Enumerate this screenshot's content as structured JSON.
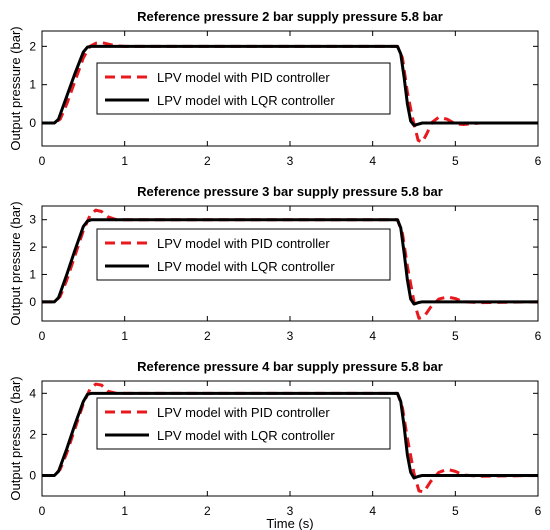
{
  "figure": {
    "ylabel": "Output pressure (bar)",
    "xlabel": "Time (s)"
  },
  "colors": {
    "pid": "#e8191e",
    "lqr": "#000000",
    "axes": "#000000",
    "background": "#ffffff"
  },
  "chart_data": [
    {
      "type": "line",
      "title": "Reference pressure 2 bar supply pressure 5.8 bar",
      "xlabel": "",
      "ylabel": "Output pressure (bar)",
      "xlim": [
        0,
        6
      ],
      "ylim": [
        -0.6,
        2.4
      ],
      "xticks": [
        "0",
        "1",
        "2",
        "3",
        "4",
        "5",
        "6"
      ],
      "yticks": [
        "0",
        "1",
        "2"
      ],
      "grid": false,
      "legend": "center",
      "series": [
        {
          "name": "LPV model with PID controller",
          "style": "dashed",
          "x": [
            0,
            0.15,
            0.22,
            0.3,
            0.4,
            0.5,
            0.58,
            0.65,
            0.72,
            0.8,
            0.9,
            1.0,
            1.2,
            4.3,
            4.36,
            4.42,
            4.48,
            4.55,
            4.6,
            4.65,
            4.72,
            4.8,
            4.9,
            5.0,
            5.1,
            5.3,
            6.0
          ],
          "y": [
            0,
            0,
            0.1,
            0.5,
            1.1,
            1.7,
            2.0,
            2.08,
            2.1,
            2.06,
            2.01,
            2.0,
            2.0,
            2.0,
            1.7,
            0.8,
            0.15,
            -0.45,
            -0.5,
            -0.3,
            0.02,
            0.15,
            0.1,
            -0.02,
            -0.04,
            0.0,
            0.0
          ]
        },
        {
          "name": "LPV model with LQR controller",
          "style": "solid",
          "x": [
            0,
            0.15,
            0.2,
            0.3,
            0.4,
            0.5,
            0.55,
            0.6,
            0.7,
            1.0,
            4.3,
            4.34,
            4.38,
            4.42,
            4.46,
            4.5,
            4.55,
            4.6,
            4.7,
            6.0
          ],
          "y": [
            0,
            0,
            0.1,
            0.7,
            1.3,
            1.85,
            1.98,
            2.0,
            2.0,
            2.0,
            2.0,
            1.8,
            1.2,
            0.5,
            0.05,
            -0.06,
            -0.03,
            0.0,
            0.0,
            0.0
          ]
        }
      ]
    },
    {
      "type": "line",
      "title": "Reference pressure 3 bar supply pressure 5.8 bar",
      "xlabel": "",
      "ylabel": "Output pressure (bar)",
      "xlim": [
        0,
        6
      ],
      "ylim": [
        -0.7,
        3.5
      ],
      "xticks": [
        "0",
        "1",
        "2",
        "3",
        "4",
        "5",
        "6"
      ],
      "yticks": [
        "0",
        "1",
        "2",
        "3"
      ],
      "grid": false,
      "legend": "center",
      "series": [
        {
          "name": "LPV model with PID controller",
          "style": "dashed",
          "x": [
            0,
            0.15,
            0.22,
            0.3,
            0.4,
            0.5,
            0.58,
            0.65,
            0.72,
            0.8,
            0.9,
            1.0,
            1.2,
            4.3,
            4.36,
            4.42,
            4.5,
            4.56,
            4.62,
            4.7,
            4.8,
            4.9,
            5.0,
            5.1,
            5.3,
            6.0
          ],
          "y": [
            0,
            0,
            0.2,
            0.8,
            1.7,
            2.6,
            3.15,
            3.35,
            3.3,
            3.1,
            3.0,
            3.0,
            3.0,
            3.0,
            2.5,
            1.3,
            0.0,
            -0.6,
            -0.55,
            -0.2,
            0.1,
            0.18,
            0.12,
            0.0,
            -0.03,
            0.0
          ]
        },
        {
          "name": "LPV model with LQR controller",
          "style": "solid",
          "x": [
            0,
            0.15,
            0.2,
            0.3,
            0.4,
            0.5,
            0.55,
            0.6,
            0.7,
            1.0,
            4.3,
            4.34,
            4.38,
            4.42,
            4.46,
            4.5,
            4.55,
            4.6,
            4.7,
            6.0
          ],
          "y": [
            0,
            0,
            0.15,
            1.0,
            1.9,
            2.75,
            2.95,
            3.0,
            3.0,
            3.0,
            3.0,
            2.7,
            1.8,
            0.8,
            0.1,
            -0.08,
            -0.03,
            0.0,
            0.0,
            0.0
          ]
        }
      ]
    },
    {
      "type": "line",
      "title": "Reference pressure 4 bar supply pressure 5.8 bar",
      "xlabel": "Time (s)",
      "ylabel": "Output pressure (bar)",
      "xlim": [
        0,
        6
      ],
      "ylim": [
        -1.0,
        4.6
      ],
      "xticks": [
        "0",
        "1",
        "2",
        "3",
        "4",
        "5",
        "6"
      ],
      "yticks": [
        "0",
        "2",
        "4"
      ],
      "grid": false,
      "legend": "center",
      "series": [
        {
          "name": "LPV model with PID controller",
          "style": "dashed",
          "x": [
            0,
            0.15,
            0.22,
            0.3,
            0.4,
            0.5,
            0.58,
            0.65,
            0.72,
            0.8,
            0.9,
            1.0,
            1.2,
            4.3,
            4.36,
            4.42,
            4.5,
            4.56,
            4.62,
            4.7,
            4.8,
            4.9,
            5.0,
            5.1,
            5.3,
            6.0
          ],
          "y": [
            0,
            0,
            0.3,
            1.1,
            2.3,
            3.5,
            4.2,
            4.45,
            4.4,
            4.1,
            4.0,
            4.0,
            4.0,
            4.0,
            3.3,
            1.8,
            0.1,
            -0.75,
            -0.8,
            -0.3,
            0.15,
            0.3,
            0.2,
            0.02,
            -0.04,
            0.0
          ]
        },
        {
          "name": "LPV model with LQR controller",
          "style": "solid",
          "x": [
            0,
            0.15,
            0.2,
            0.3,
            0.4,
            0.5,
            0.55,
            0.6,
            0.7,
            1.0,
            4.3,
            4.34,
            4.38,
            4.42,
            4.46,
            4.5,
            4.55,
            4.6,
            4.7,
            6.0
          ],
          "y": [
            0,
            0,
            0.2,
            1.3,
            2.5,
            3.6,
            3.95,
            4.0,
            4.0,
            4.0,
            4.0,
            3.6,
            2.4,
            1.0,
            0.15,
            -0.12,
            -0.05,
            0.0,
            0.0,
            0.0
          ]
        }
      ]
    }
  ]
}
